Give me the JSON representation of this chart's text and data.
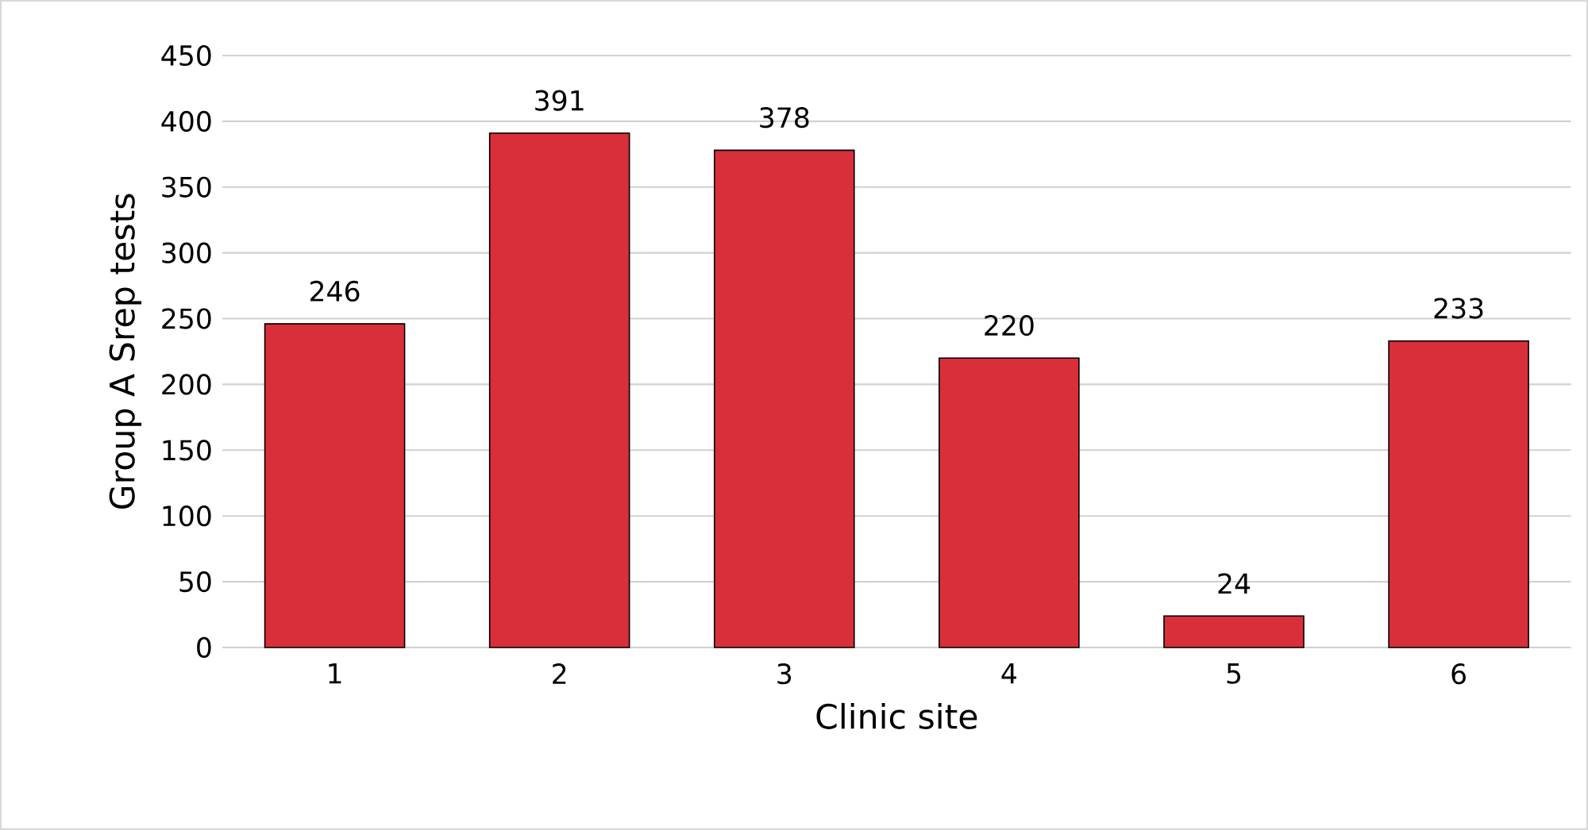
{
  "chart_data": {
    "type": "bar",
    "categories": [
      "1",
      "2",
      "3",
      "4",
      "5",
      "6"
    ],
    "values": [
      246,
      391,
      378,
      220,
      24,
      233
    ],
    "color": "#d92f3b",
    "xlabel": "Clinic site",
    "ylabel": "Group A Srep tests",
    "ylim": [
      0,
      450
    ],
    "yticks": [
      0,
      50,
      100,
      150,
      200,
      250,
      300,
      350,
      400,
      450
    ],
    "grid": "y",
    "data_labels": true
  }
}
